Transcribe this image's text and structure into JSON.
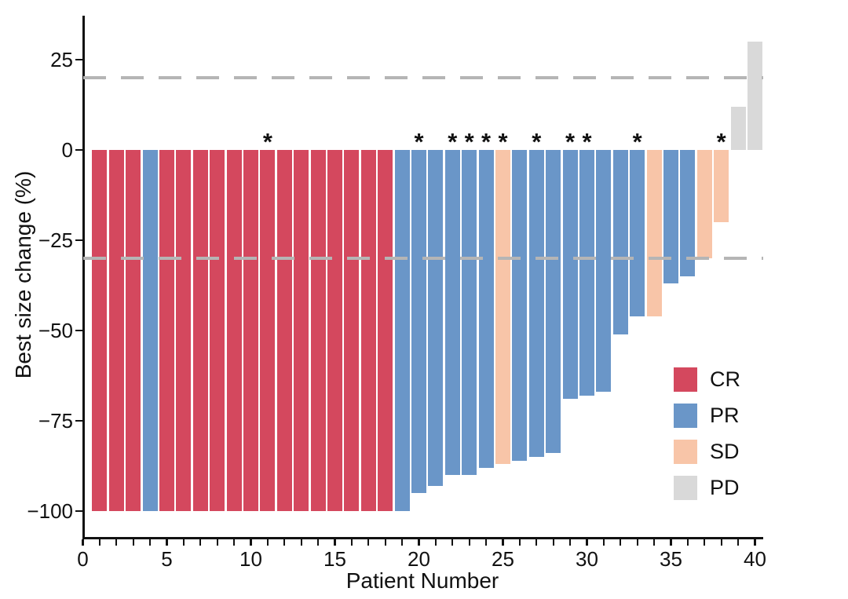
{
  "chart_data": {
    "type": "bar",
    "title": "",
    "xlabel": "Patient Number",
    "ylabel": "Best size change (%)",
    "x_ticks": [
      0,
      5,
      10,
      15,
      20,
      25,
      30,
      35,
      40
    ],
    "x_minor_tick_step": 1,
    "x_range": [
      0,
      40
    ],
    "y_ticks": [
      25,
      0,
      -25,
      -50,
      -75,
      -100
    ],
    "y_tick_labels": [
      "25",
      "0",
      "−25",
      "−50",
      "−75",
      "−100"
    ],
    "ylim": [
      -113,
      38
    ],
    "grid": false,
    "bar_width_fraction": 0.9,
    "threshold_lines": [
      {
        "y": 20,
        "style": "dashed",
        "color": "#b5b5b5",
        "name": "progression-threshold-plus-20"
      },
      {
        "y": -30,
        "style": "dashed",
        "color": "#b5b5b5",
        "name": "response-threshold-minus-30"
      }
    ],
    "legend": {
      "position": "right-lower",
      "entries": [
        {
          "label": "CR",
          "color": "#d4485e"
        },
        {
          "label": "PR",
          "color": "#6a96c8"
        },
        {
          "label": "SD",
          "color": "#f8c5a8"
        },
        {
          "label": "PD",
          "color": "#d9d9d9"
        }
      ]
    },
    "asterisk_symbol": "*",
    "patients": [
      {
        "patient": 1,
        "value": -100,
        "response": "CR",
        "asterisk": false
      },
      {
        "patient": 2,
        "value": -100,
        "response": "CR",
        "asterisk": false
      },
      {
        "patient": 3,
        "value": -100,
        "response": "CR",
        "asterisk": false
      },
      {
        "patient": 4,
        "value": -100,
        "response": "PR",
        "asterisk": false
      },
      {
        "patient": 5,
        "value": -100,
        "response": "CR",
        "asterisk": false
      },
      {
        "patient": 6,
        "value": -100,
        "response": "CR",
        "asterisk": false
      },
      {
        "patient": 7,
        "value": -100,
        "response": "CR",
        "asterisk": false
      },
      {
        "patient": 8,
        "value": -100,
        "response": "CR",
        "asterisk": false
      },
      {
        "patient": 9,
        "value": -100,
        "response": "CR",
        "asterisk": false
      },
      {
        "patient": 10,
        "value": -100,
        "response": "CR",
        "asterisk": false
      },
      {
        "patient": 11,
        "value": -100,
        "response": "CR",
        "asterisk": true
      },
      {
        "patient": 12,
        "value": -100,
        "response": "CR",
        "asterisk": false
      },
      {
        "patient": 13,
        "value": -100,
        "response": "CR",
        "asterisk": false
      },
      {
        "patient": 14,
        "value": -100,
        "response": "CR",
        "asterisk": false
      },
      {
        "patient": 15,
        "value": -100,
        "response": "CR",
        "asterisk": false
      },
      {
        "patient": 16,
        "value": -100,
        "response": "CR",
        "asterisk": false
      },
      {
        "patient": 17,
        "value": -100,
        "response": "CR",
        "asterisk": false
      },
      {
        "patient": 18,
        "value": -100,
        "response": "CR",
        "asterisk": false
      },
      {
        "patient": 19,
        "value": -100,
        "response": "PR",
        "asterisk": false
      },
      {
        "patient": 20,
        "value": -95,
        "response": "PR",
        "asterisk": true
      },
      {
        "patient": 21,
        "value": -93,
        "response": "PR",
        "asterisk": false
      },
      {
        "patient": 22,
        "value": -90,
        "response": "PR",
        "asterisk": true
      },
      {
        "patient": 23,
        "value": -90,
        "response": "PR",
        "asterisk": true
      },
      {
        "patient": 24,
        "value": -88,
        "response": "PR",
        "asterisk": true
      },
      {
        "patient": 25,
        "value": -87,
        "response": "SD",
        "asterisk": true
      },
      {
        "patient": 26,
        "value": -86,
        "response": "PR",
        "asterisk": false
      },
      {
        "patient": 27,
        "value": -85,
        "response": "PR",
        "asterisk": true
      },
      {
        "patient": 28,
        "value": -84,
        "response": "PR",
        "asterisk": false
      },
      {
        "patient": 29,
        "value": -69,
        "response": "PR",
        "asterisk": true
      },
      {
        "patient": 30,
        "value": -68,
        "response": "PR",
        "asterisk": true
      },
      {
        "patient": 31,
        "value": -67,
        "response": "PR",
        "asterisk": false
      },
      {
        "patient": 32,
        "value": -51,
        "response": "PR",
        "asterisk": false
      },
      {
        "patient": 33,
        "value": -46,
        "response": "PR",
        "asterisk": true
      },
      {
        "patient": 34,
        "value": -46,
        "response": "SD",
        "asterisk": false
      },
      {
        "patient": 35,
        "value": -37,
        "response": "PR",
        "asterisk": false
      },
      {
        "patient": 36,
        "value": -35,
        "response": "PR",
        "asterisk": false
      },
      {
        "patient": 37,
        "value": -30,
        "response": "SD",
        "asterisk": false
      },
      {
        "patient": 38,
        "value": -20,
        "response": "SD",
        "asterisk": true
      },
      {
        "patient": 39,
        "value": 12,
        "response": "PD",
        "asterisk": false
      },
      {
        "patient": 40,
        "value": 30,
        "response": "PD",
        "asterisk": false
      }
    ]
  }
}
